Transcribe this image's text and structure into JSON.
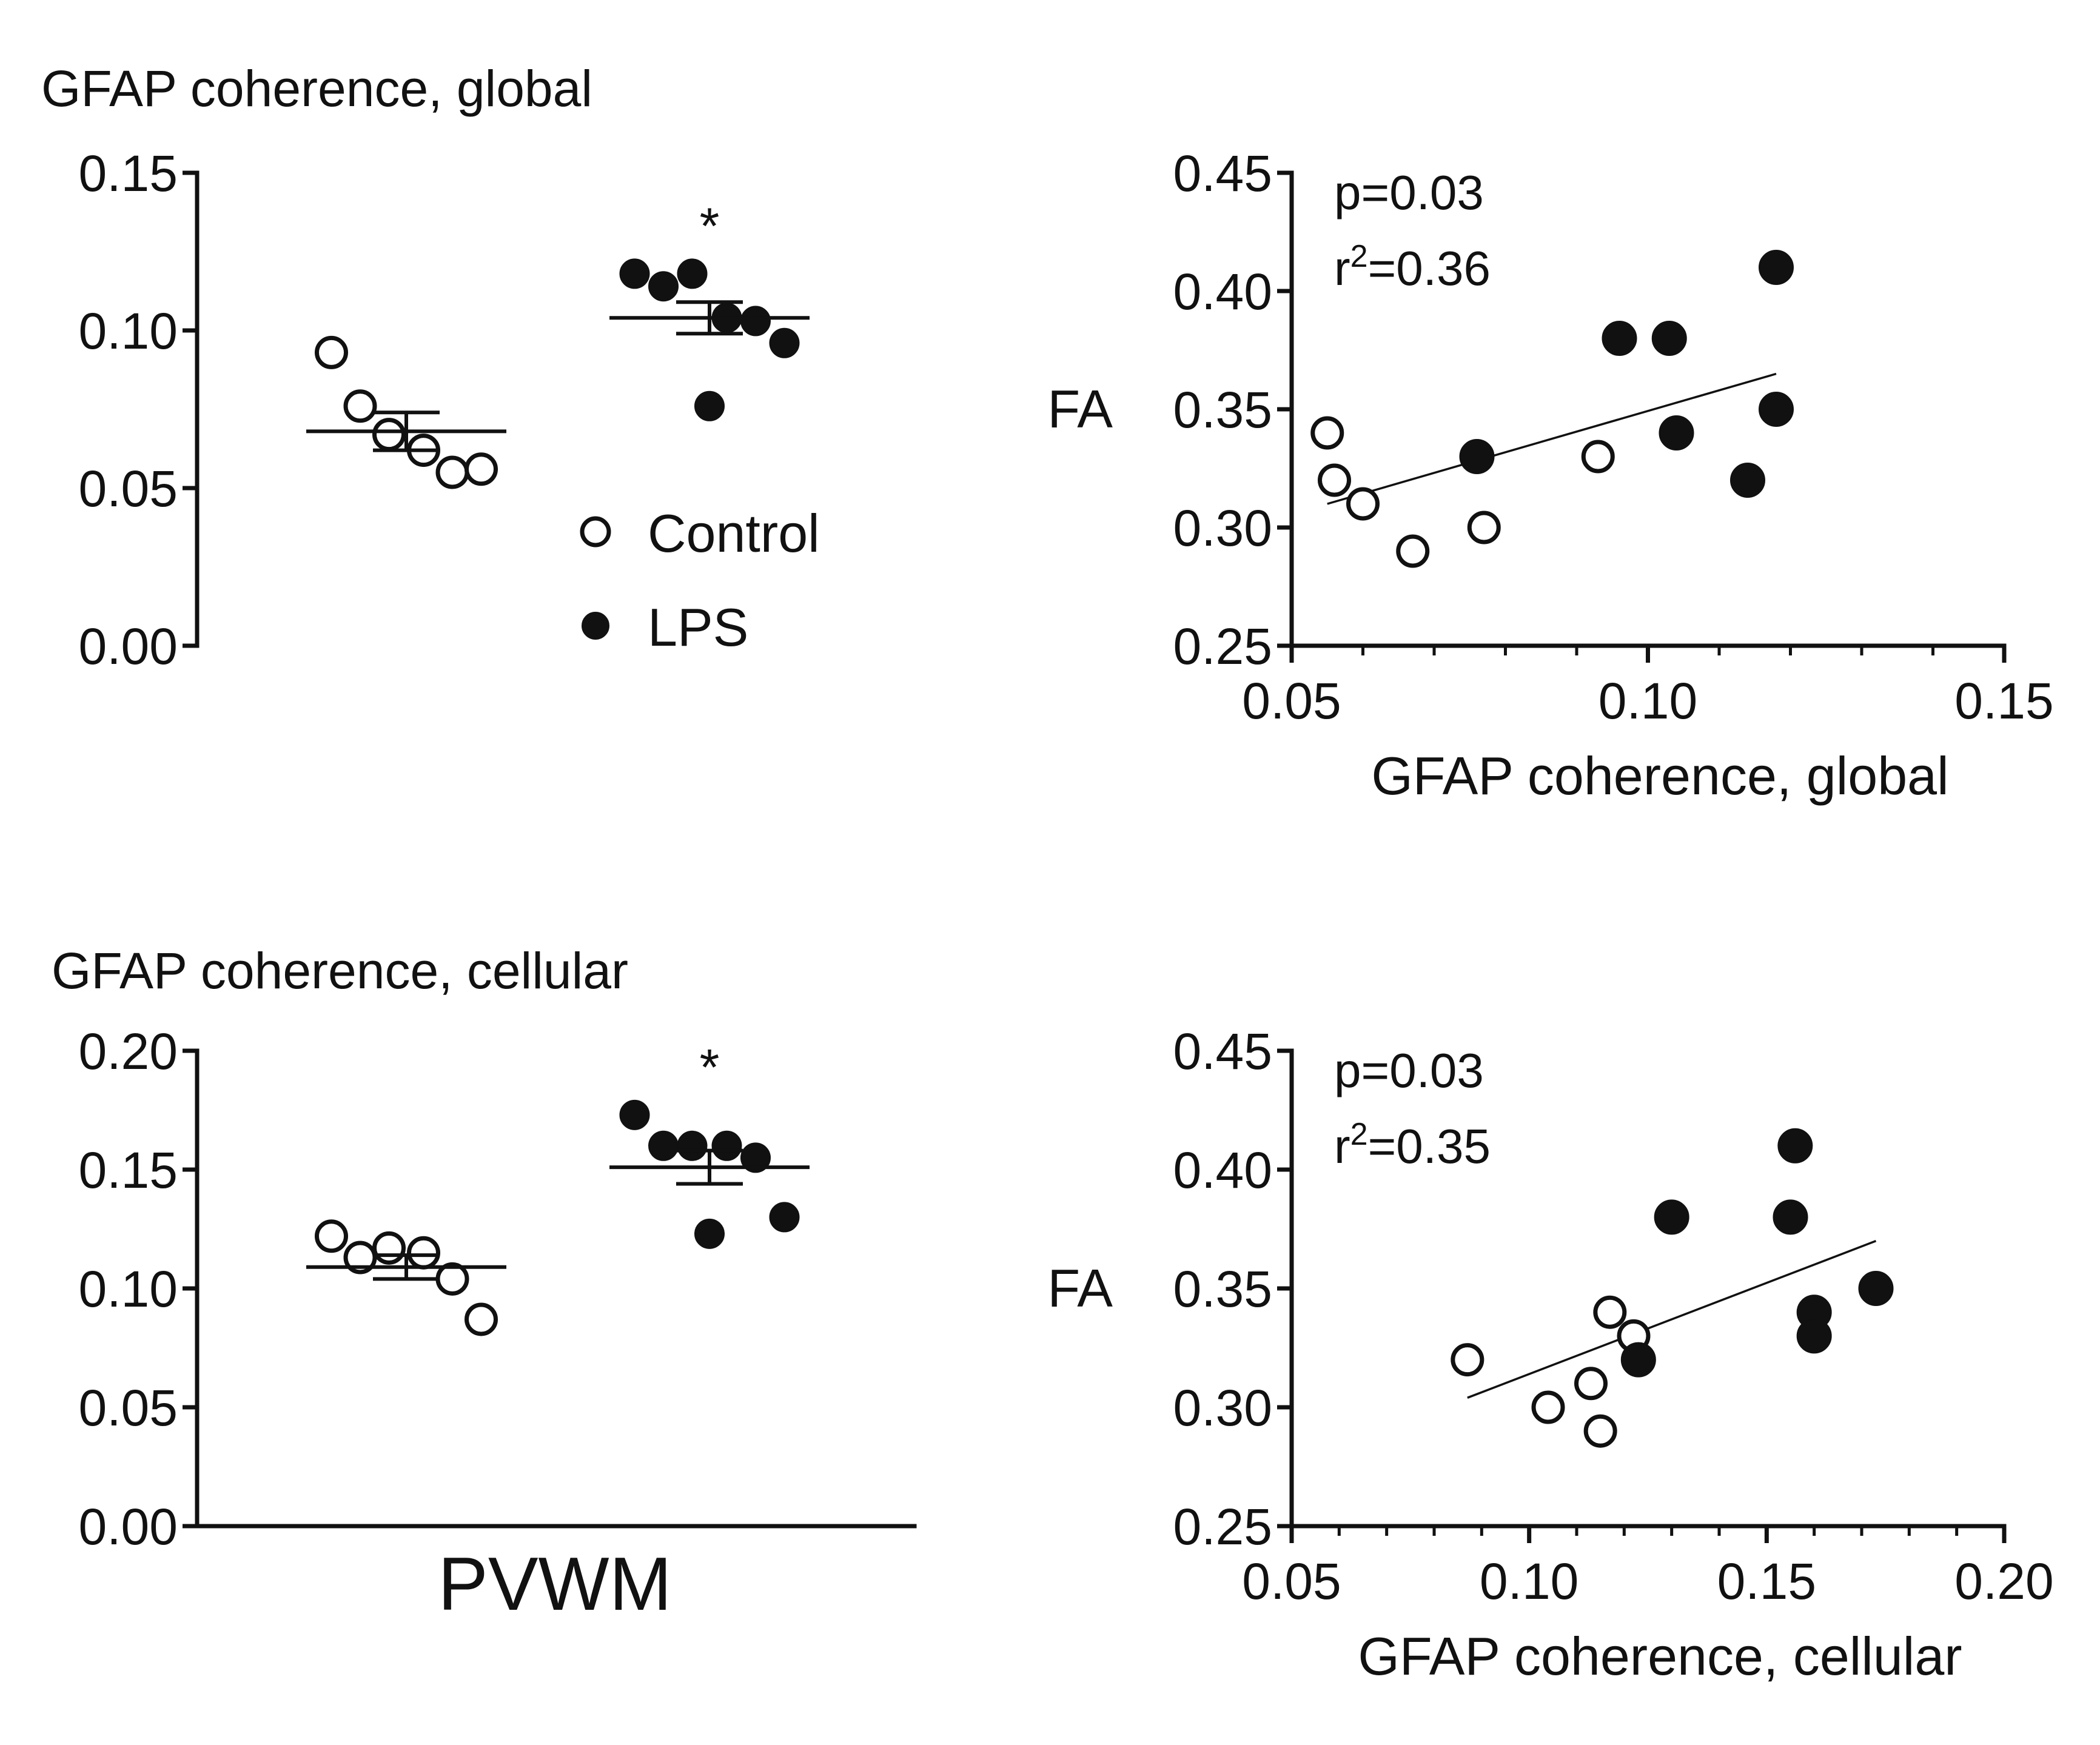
{
  "chart_data": [
    {
      "type": "scatter",
      "subtype": "dot-plot",
      "title": "GFAP coherence, global",
      "ylim": [
        0,
        0.15
      ],
      "yticks": [
        "0.00",
        "0.05",
        "0.10",
        "0.15"
      ],
      "groups": [
        {
          "name": "Control",
          "marker": "open",
          "mean": 0.068,
          "sem": 0.006,
          "values": [
            0.093,
            0.076,
            0.067,
            0.062,
            0.055,
            0.056
          ]
        },
        {
          "name": "LPS",
          "marker": "filled",
          "mean": 0.104,
          "sem": 0.005,
          "values": [
            0.118,
            0.114,
            0.118,
            0.104,
            0.103,
            0.096,
            0.076
          ]
        }
      ],
      "annotation": "*",
      "legend": {
        "position": "bottom-right",
        "entries": [
          {
            "label": "Control",
            "marker": "open"
          },
          {
            "label": "LPS",
            "marker": "filled"
          }
        ]
      }
    },
    {
      "type": "scatter",
      "xlabel": "GFAP coherence, global",
      "ylabel": "FA",
      "xlim": [
        0.05,
        0.15
      ],
      "ylim": [
        0.25,
        0.45
      ],
      "xticks": [
        "0.05",
        "0.10",
        "0.15"
      ],
      "yticks": [
        "0.25",
        "0.30",
        "0.35",
        "0.40",
        "0.45"
      ],
      "stats": {
        "p": "p=0.03",
        "r2_prefix": "r",
        "r2_sup": "2",
        "r2_value": "=0.36"
      },
      "series": [
        {
          "name": "Control",
          "marker": "open",
          "points": [
            {
              "x": 0.055,
              "y": 0.34
            },
            {
              "x": 0.056,
              "y": 0.32
            },
            {
              "x": 0.06,
              "y": 0.31
            },
            {
              "x": 0.067,
              "y": 0.29
            },
            {
              "x": 0.077,
              "y": 0.3
            },
            {
              "x": 0.093,
              "y": 0.33
            }
          ]
        },
        {
          "name": "LPS",
          "marker": "filled",
          "points": [
            {
              "x": 0.076,
              "y": 0.33
            },
            {
              "x": 0.096,
              "y": 0.38
            },
            {
              "x": 0.103,
              "y": 0.38
            },
            {
              "x": 0.104,
              "y": 0.34
            },
            {
              "x": 0.114,
              "y": 0.32
            },
            {
              "x": 0.118,
              "y": 0.35
            },
            {
              "x": 0.118,
              "y": 0.41
            }
          ]
        }
      ],
      "fit_line": {
        "x": [
          0.055,
          0.118
        ],
        "y": [
          0.31,
          0.365
        ]
      }
    },
    {
      "type": "scatter",
      "subtype": "dot-plot",
      "title": "GFAP coherence, cellular",
      "xlabel": "PVWM",
      "ylim": [
        0,
        0.2
      ],
      "yticks": [
        "0.00",
        "0.05",
        "0.10",
        "0.15",
        "0.20"
      ],
      "groups": [
        {
          "name": "Control",
          "marker": "open",
          "mean": 0.109,
          "sem": 0.005,
          "values": [
            0.122,
            0.113,
            0.117,
            0.115,
            0.104,
            0.087
          ]
        },
        {
          "name": "LPS",
          "marker": "filled",
          "mean": 0.151,
          "sem": 0.007,
          "values": [
            0.173,
            0.16,
            0.16,
            0.16,
            0.155,
            0.13,
            0.123
          ]
        }
      ],
      "annotation": "*"
    },
    {
      "type": "scatter",
      "xlabel": "GFAP coherence, cellular",
      "ylabel": "FA",
      "xlim": [
        0.05,
        0.2
      ],
      "ylim": [
        0.25,
        0.45
      ],
      "xticks": [
        "0.05",
        "0.10",
        "0.15",
        "0.20"
      ],
      "yticks": [
        "0.25",
        "0.30",
        "0.35",
        "0.40",
        "0.45"
      ],
      "stats": {
        "p": "p=0.03",
        "r2_prefix": "r",
        "r2_sup": "2",
        "r2_value": "=0.35"
      },
      "series": [
        {
          "name": "Control",
          "marker": "open",
          "points": [
            {
              "x": 0.087,
              "y": 0.32
            },
            {
              "x": 0.104,
              "y": 0.3
            },
            {
              "x": 0.113,
              "y": 0.31
            },
            {
              "x": 0.115,
              "y": 0.29
            },
            {
              "x": 0.117,
              "y": 0.34
            },
            {
              "x": 0.122,
              "y": 0.33
            }
          ]
        },
        {
          "name": "LPS",
          "marker": "filled",
          "points": [
            {
              "x": 0.123,
              "y": 0.32
            },
            {
              "x": 0.13,
              "y": 0.38
            },
            {
              "x": 0.155,
              "y": 0.38
            },
            {
              "x": 0.156,
              "y": 0.41
            },
            {
              "x": 0.16,
              "y": 0.34
            },
            {
              "x": 0.16,
              "y": 0.33
            },
            {
              "x": 0.173,
              "y": 0.35
            }
          ]
        }
      ],
      "fit_line": {
        "x": [
          0.087,
          0.173
        ],
        "y": [
          0.304,
          0.37
        ]
      }
    }
  ]
}
